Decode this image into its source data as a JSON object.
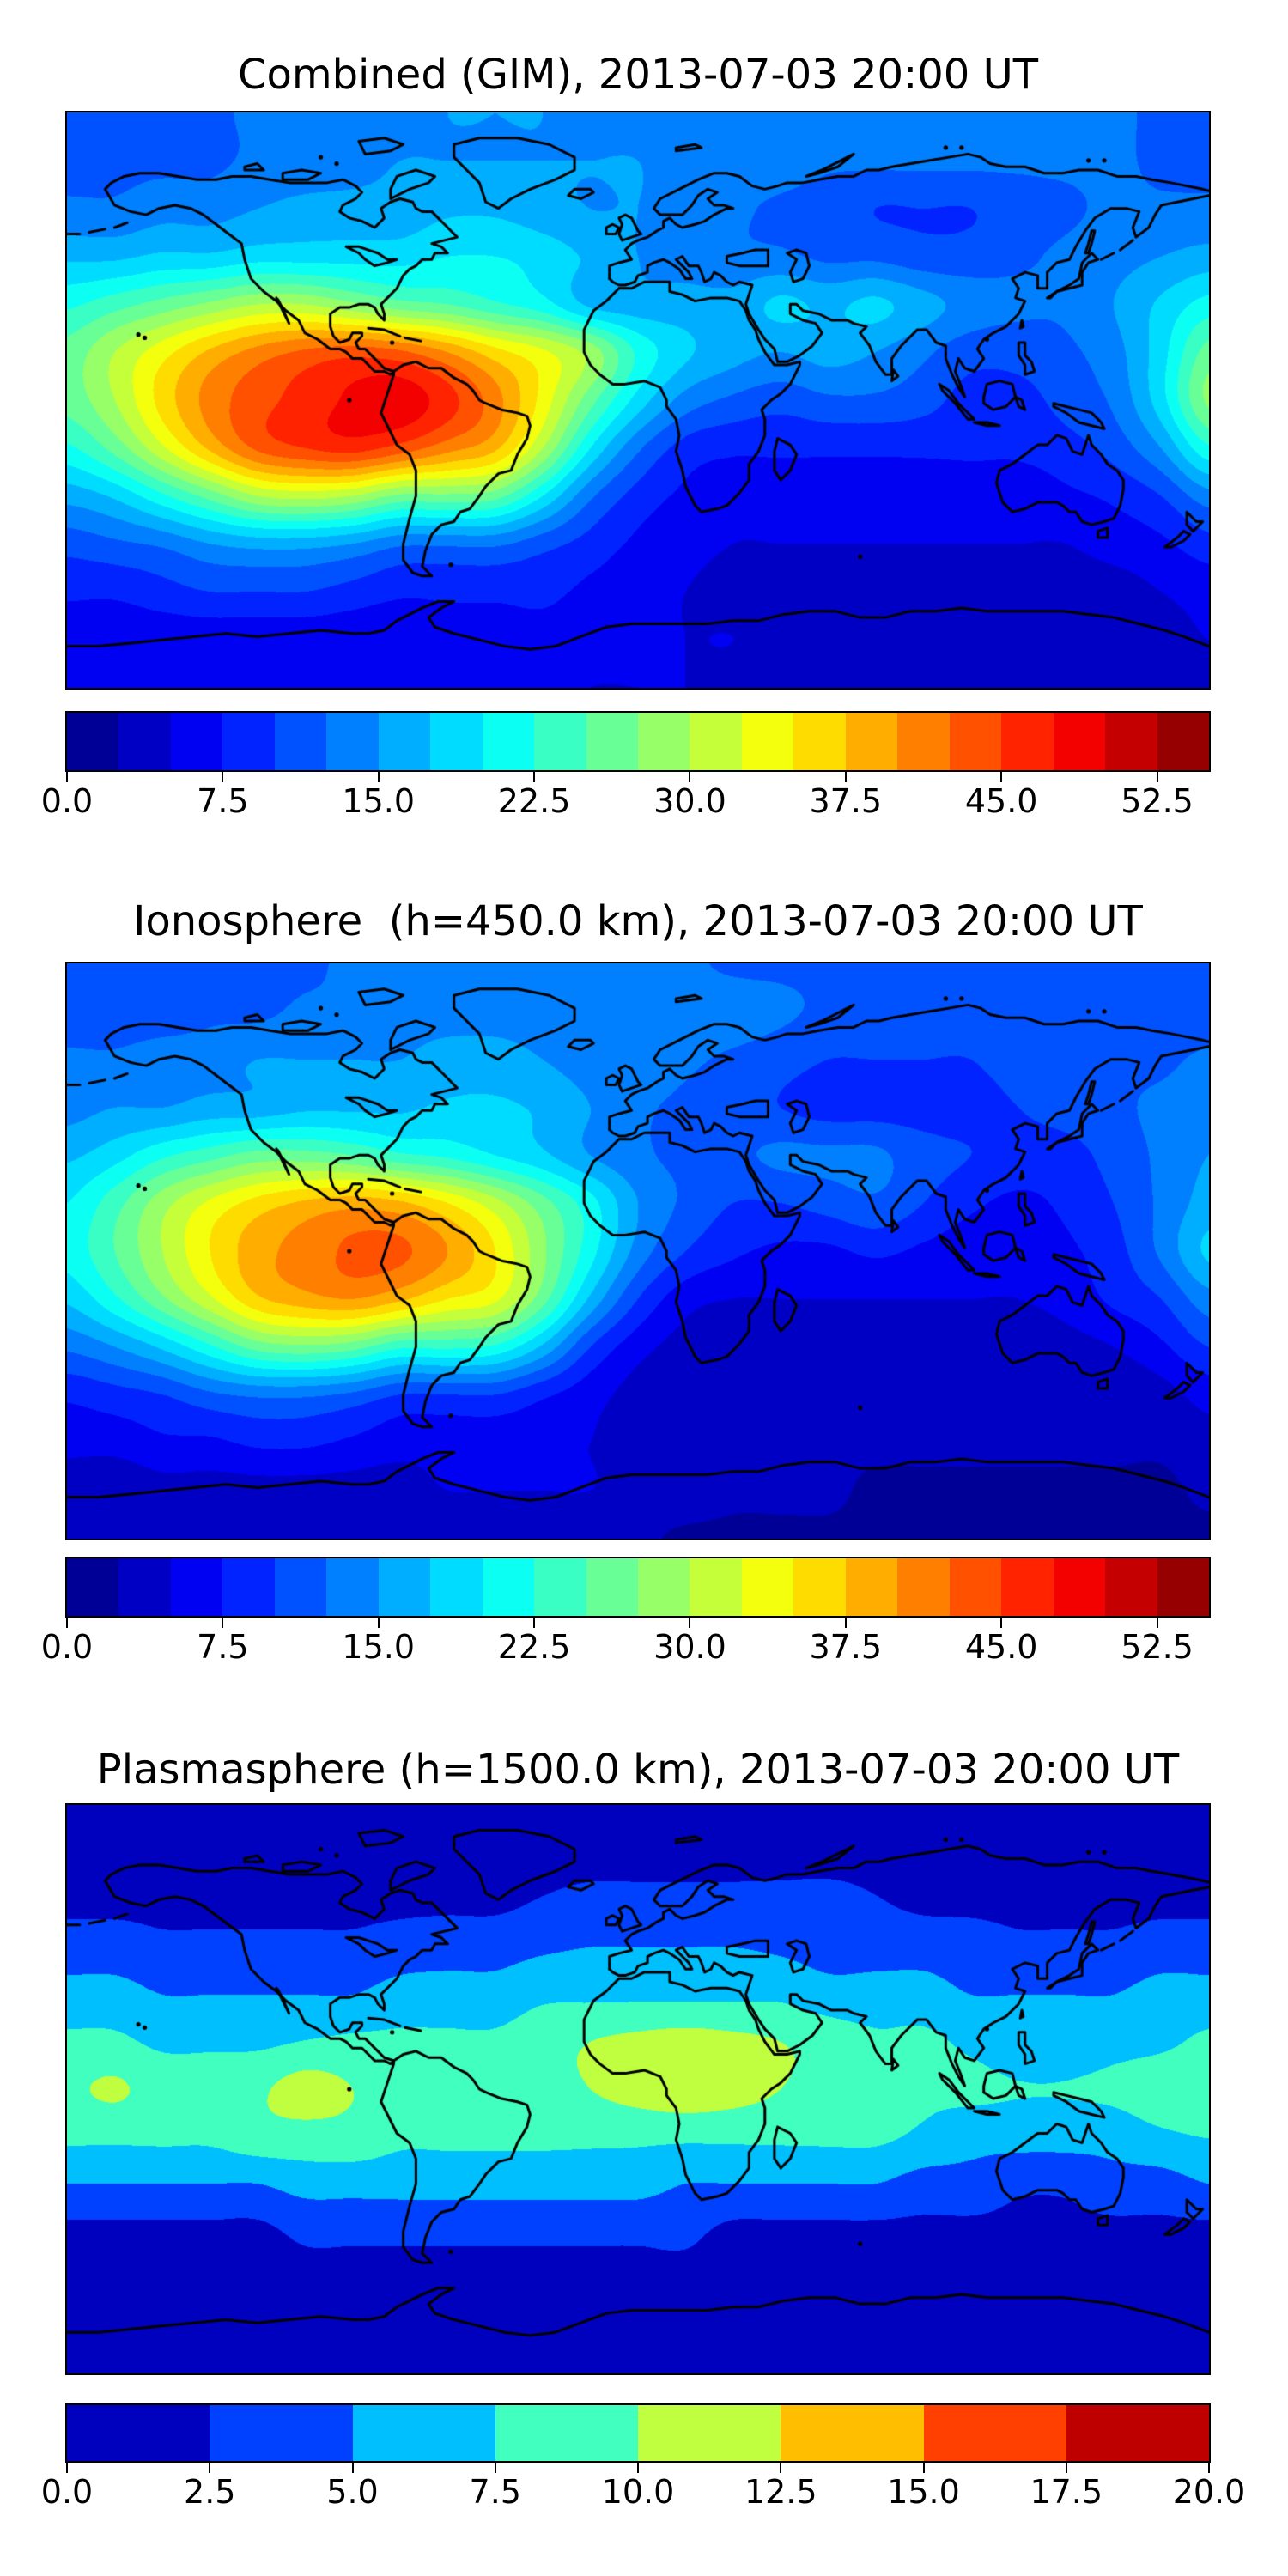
{
  "figure": {
    "background": "#ffffff",
    "coastline_color": "#000000",
    "frame_color": "#000000",
    "colormap_name": "jet"
  },
  "chart_data": [
    {
      "type": "heatmap",
      "title": "Combined (GIM), 2013-07-03 20:00 UT",
      "projection": "equirectangular",
      "colormap": "jet",
      "vmin": 0.0,
      "vmax": 55.0,
      "level_step": 2.5,
      "n_levels": 22,
      "colorbar_ticks": [
        0.0,
        7.5,
        15.0,
        22.5,
        30.0,
        37.5,
        45.0,
        52.5
      ],
      "colorbar_tick_labels": [
        "0.0",
        "7.5",
        "15.0",
        "22.5",
        "30.0",
        "37.5",
        "45.0",
        "52.5"
      ],
      "lons": [
        -180,
        -165,
        -150,
        -135,
        -120,
        -105,
        -90,
        -75,
        -60,
        -45,
        -30,
        -15,
        0,
        15,
        30,
        45,
        60,
        75,
        90,
        105,
        120,
        135,
        150,
        165,
        180
      ],
      "lats": [
        90,
        75,
        60,
        45,
        30,
        15,
        0,
        -15,
        -30,
        -45,
        -60,
        -75,
        -90
      ],
      "values": [
        [
          12,
          12,
          12,
          12,
          13,
          13,
          14,
          14,
          15,
          15,
          15,
          14,
          14,
          14,
          13,
          13,
          13,
          13,
          13,
          13,
          13,
          13,
          13,
          12,
          12
        ],
        [
          12,
          12,
          12,
          12,
          13,
          13,
          14,
          15,
          15,
          15,
          15,
          15,
          15,
          14,
          14,
          14,
          13,
          13,
          13,
          13,
          13,
          13,
          13,
          12,
          12
        ],
        [
          13,
          13,
          14,
          14,
          15,
          16,
          16,
          16,
          17,
          17,
          16,
          15,
          15,
          14,
          13,
          12,
          11,
          10,
          10,
          10,
          11,
          12,
          13,
          13,
          13
        ],
        [
          17,
          17,
          18,
          18,
          19,
          19,
          19,
          19,
          20,
          20,
          19,
          17,
          15,
          14,
          13,
          13,
          12,
          12,
          11,
          11,
          12,
          13,
          14,
          15,
          16
        ],
        [
          22,
          24,
          26,
          28,
          30,
          30,
          28,
          26,
          25,
          23,
          21,
          17,
          16,
          16,
          16,
          18,
          17,
          18,
          16,
          14,
          13,
          13,
          15,
          18,
          21
        ],
        [
          26,
          30,
          34,
          38,
          41,
          43,
          44,
          43,
          40,
          36,
          33,
          29,
          22,
          18,
          16,
          15,
          16,
          15,
          13,
          11,
          11,
          12,
          14,
          19,
          26
        ],
        [
          26,
          30,
          36,
          41,
          44,
          46,
          48,
          49,
          46,
          41,
          34,
          26,
          19,
          14,
          12,
          11,
          12,
          12,
          11,
          9,
          9,
          11,
          13,
          19,
          28
        ],
        [
          22,
          26,
          32,
          38,
          43,
          45,
          46,
          44,
          41,
          38,
          30,
          20,
          13,
          9,
          8,
          8,
          8,
          8,
          8,
          8,
          8,
          9,
          11,
          15,
          22
        ],
        [
          16,
          18,
          22,
          26,
          30,
          31,
          30,
          27,
          27,
          26,
          20,
          13,
          9,
          7,
          6,
          6,
          6,
          6,
          6,
          6,
          6,
          7,
          8,
          10,
          14
        ],
        [
          11,
          12,
          13,
          15,
          16,
          16,
          15,
          13,
          13,
          13,
          11,
          9,
          7,
          6,
          5,
          5,
          5,
          5,
          5,
          5,
          5,
          5,
          6,
          7,
          9
        ],
        [
          8,
          8,
          9,
          10,
          10,
          10,
          9,
          8,
          8,
          8,
          8,
          7,
          6,
          5,
          4,
          4,
          4,
          4,
          4,
          4,
          4,
          4,
          4,
          5,
          6
        ],
        [
          6,
          6,
          6,
          6,
          6,
          6,
          6,
          6,
          7,
          7,
          7,
          7,
          6,
          5,
          5,
          4,
          4,
          4,
          3.6,
          3.6,
          3.6,
          3.6,
          4,
          4,
          5
        ],
        [
          6,
          6,
          6,
          6,
          6,
          6,
          6,
          6,
          6,
          6,
          6,
          5,
          5,
          5,
          4,
          4,
          4,
          4,
          4,
          4,
          4,
          4,
          4,
          4,
          4
        ]
      ]
    },
    {
      "type": "heatmap",
      "title": "Ionosphere  (h=450.0 km), 2013-07-03 20:00 UT",
      "projection": "equirectangular",
      "colormap": "jet",
      "vmin": 0.0,
      "vmax": 55.0,
      "level_step": 2.5,
      "n_levels": 22,
      "colorbar_ticks": [
        0.0,
        7.5,
        15.0,
        22.5,
        30.0,
        37.5,
        45.0,
        52.5
      ],
      "colorbar_tick_labels": [
        "0.0",
        "7.5",
        "15.0",
        "22.5",
        "30.0",
        "37.5",
        "45.0",
        "52.5"
      ],
      "lons": [
        -180,
        -165,
        -150,
        -135,
        -120,
        -105,
        -90,
        -75,
        -60,
        -45,
        -30,
        -15,
        0,
        15,
        30,
        45,
        60,
        75,
        90,
        105,
        120,
        135,
        150,
        165,
        180
      ],
      "lats": [
        90,
        75,
        60,
        45,
        30,
        15,
        0,
        -15,
        -30,
        -45,
        -60,
        -75,
        -90
      ],
      "values": [
        [
          12,
          12,
          12,
          12,
          12,
          12,
          13,
          13,
          13,
          13,
          13,
          13,
          13,
          13,
          12,
          12,
          12,
          12,
          11,
          11,
          11,
          11,
          12,
          12,
          12
        ],
        [
          11,
          11,
          11,
          12,
          12,
          13,
          13,
          14,
          14,
          14,
          14,
          14,
          14,
          14,
          14,
          13,
          12,
          12,
          11,
          11,
          11,
          11,
          11,
          11,
          11
        ],
        [
          13,
          13,
          14,
          14,
          15,
          15,
          15,
          15,
          16,
          16,
          15,
          14,
          14,
          13,
          12,
          11,
          10,
          10,
          10,
          10,
          11,
          11,
          12,
          12,
          13
        ],
        [
          14,
          15,
          15,
          16,
          16,
          17,
          17,
          17,
          18,
          18,
          17,
          15,
          13,
          12,
          11,
          10,
          9,
          9,
          9,
          9,
          10,
          11,
          12,
          13,
          14
        ],
        [
          17,
          19,
          22,
          24,
          26,
          26,
          25,
          23,
          22,
          20,
          18,
          15,
          13,
          12,
          12,
          13,
          13,
          13,
          11,
          10,
          9,
          9,
          11,
          13,
          15
        ],
        [
          20,
          24,
          29,
          33,
          36,
          38,
          39,
          38,
          35,
          31,
          26,
          21,
          15,
          12,
          10,
          10,
          11,
          12,
          10,
          8,
          7,
          8,
          10,
          13,
          16
        ],
        [
          21,
          25,
          30,
          35,
          39,
          41,
          43,
          43,
          40,
          35,
          28,
          21,
          14,
          10,
          8,
          7,
          7,
          8,
          7,
          6,
          6,
          7,
          9,
          13,
          18
        ],
        [
          18,
          22,
          27,
          32,
          37,
          39,
          40,
          38,
          35,
          33,
          26,
          17,
          10,
          6,
          5,
          5,
          5,
          5,
          5,
          5,
          5,
          6,
          8,
          10,
          14
        ],
        [
          13,
          15,
          18,
          22,
          26,
          27,
          26,
          23,
          23,
          22,
          17,
          10,
          6,
          4,
          3,
          3,
          3,
          3,
          3,
          3,
          3,
          4,
          5,
          7,
          10
        ],
        [
          8,
          9,
          10,
          12,
          13,
          13,
          12,
          10,
          10,
          10,
          8,
          6,
          4,
          3,
          3,
          3,
          3,
          3,
          3,
          3,
          3,
          3,
          3,
          4,
          6
        ],
        [
          6,
          6,
          7,
          7,
          8,
          8,
          7,
          6,
          6,
          6,
          6,
          5,
          4,
          3,
          3,
          3,
          3,
          3,
          3,
          3,
          3,
          3,
          3,
          3,
          4
        ],
        [
          3,
          3,
          4,
          4,
          4,
          4,
          4,
          4,
          5,
          5,
          5,
          5,
          4,
          4,
          3,
          3,
          3,
          2,
          2,
          2,
          2,
          2,
          2,
          2,
          3
        ],
        [
          3,
          3,
          3,
          3,
          3,
          3,
          3,
          3,
          3,
          3,
          3,
          3,
          3,
          2,
          2,
          2,
          2,
          2,
          2,
          2,
          2,
          2,
          2,
          2,
          2
        ]
      ]
    },
    {
      "type": "heatmap",
      "title": "Plasmasphere (h=1500.0 km), 2013-07-03 20:00 UT",
      "projection": "equirectangular",
      "colormap": "jet",
      "vmin": 0.0,
      "vmax": 20.0,
      "level_step": 2.5,
      "n_levels": 8,
      "colorbar_ticks": [
        0.0,
        2.5,
        5.0,
        7.5,
        10.0,
        12.5,
        15.0,
        17.5,
        20.0
      ],
      "colorbar_tick_labels": [
        "0.0",
        "2.5",
        "5.0",
        "7.5",
        "10.0",
        "12.5",
        "15.0",
        "17.5",
        "20.0"
      ],
      "lons": [
        -180,
        -165,
        -150,
        -135,
        -120,
        -105,
        -90,
        -75,
        -60,
        -45,
        -30,
        -15,
        0,
        15,
        30,
        45,
        60,
        75,
        90,
        105,
        120,
        135,
        150,
        165,
        180
      ],
      "lats": [
        90,
        75,
        60,
        45,
        30,
        15,
        0,
        -15,
        -30,
        -45,
        -60,
        -75,
        -90
      ],
      "values": [
        [
          2,
          2,
          2,
          2,
          2,
          2,
          2,
          2,
          2,
          2,
          2,
          2,
          2,
          2,
          2,
          2,
          2,
          2,
          2,
          2,
          2,
          2,
          2,
          2,
          2
        ],
        [
          2,
          2,
          2,
          2,
          2,
          2,
          2,
          2,
          2,
          2,
          2,
          2,
          2,
          2,
          2,
          2,
          2,
          2,
          2,
          2,
          2,
          2,
          2,
          2,
          2
        ],
        [
          2,
          2,
          2,
          2,
          2,
          2,
          2,
          2,
          2,
          2,
          2.6,
          3,
          3,
          3,
          3,
          3,
          3,
          2.6,
          2,
          2,
          2,
          2,
          2,
          2,
          2
        ],
        [
          3.6,
          3.6,
          3,
          3,
          3,
          3,
          3,
          3.6,
          4,
          4,
          4.6,
          5,
          5,
          5,
          5,
          4.6,
          4,
          4,
          4,
          3.6,
          3,
          3,
          3,
          3.6,
          3.6
        ],
        [
          6,
          6,
          5,
          5,
          5,
          5,
          5,
          6,
          6,
          6,
          7,
          7,
          7,
          7,
          7,
          7,
          6,
          6,
          6,
          5,
          5,
          5,
          5,
          6,
          6
        ],
        [
          8,
          8,
          7,
          7,
          7,
          7.6,
          8,
          8,
          8,
          8,
          9,
          10,
          10.6,
          11,
          10.6,
          10,
          9,
          8,
          8,
          7,
          6,
          6,
          6.6,
          7,
          8
        ],
        [
          9.6,
          10.3,
          9,
          9,
          9.6,
          11,
          10,
          9,
          9,
          9,
          9,
          10,
          11,
          11.6,
          11,
          10,
          9,
          9,
          8,
          8,
          7.6,
          7.6,
          8,
          9,
          9.6
        ],
        [
          8,
          8,
          8,
          8,
          9,
          9,
          9,
          8,
          8,
          8,
          8,
          8,
          8,
          8,
          8,
          8,
          8,
          8,
          7,
          6,
          6,
          6,
          6,
          7,
          7.6
        ],
        [
          5,
          5,
          5,
          5,
          5,
          6,
          6,
          6,
          6,
          6,
          6,
          6,
          6,
          5,
          5,
          5,
          5,
          5,
          4,
          4,
          3,
          3,
          4,
          4,
          5
        ],
        [
          2,
          2,
          2,
          2,
          2,
          3,
          3,
          3,
          3,
          3,
          3,
          3,
          3,
          3,
          2,
          2,
          2,
          2,
          2,
          2,
          2,
          2,
          2,
          2,
          2
        ],
        [
          2,
          2,
          2,
          2,
          2,
          2,
          2,
          2,
          2,
          2,
          2,
          2,
          2,
          2,
          2,
          2,
          2,
          2,
          2,
          2,
          2,
          2,
          2,
          2,
          2
        ],
        [
          2,
          2,
          2,
          2,
          2,
          2,
          2,
          2,
          2,
          2,
          2,
          2,
          2,
          2,
          2,
          2,
          2,
          2,
          2,
          2,
          2,
          2,
          2,
          2,
          2
        ],
        [
          2,
          2,
          2,
          2,
          2,
          2,
          2,
          2,
          2,
          2,
          2,
          2,
          2,
          2,
          2,
          2,
          2,
          2,
          2,
          2,
          2,
          2,
          2,
          2,
          2
        ]
      ]
    }
  ]
}
